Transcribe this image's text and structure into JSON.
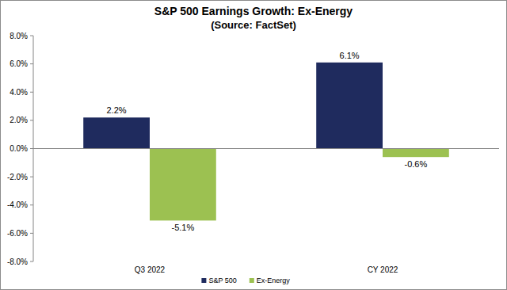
{
  "chart_data": {
    "type": "bar",
    "title": "S&P 500 Earnings Growth: Ex-Energy",
    "subtitle": "(Source: FactSet)",
    "categories": [
      "Q3 2022",
      "CY 2022"
    ],
    "series": [
      {
        "name": "S&P 500",
        "color": "#1f2b5e",
        "values": [
          2.2,
          6.1
        ],
        "value_labels": [
          "2.2%",
          "6.1%"
        ]
      },
      {
        "name": "Ex-Energy",
        "color": "#9cc151",
        "values": [
          -5.1,
          -0.6
        ],
        "value_labels": [
          "-5.1%",
          "-0.6%"
        ]
      }
    ],
    "ylim": [
      -8,
      8
    ],
    "yticks": [
      {
        "value": -8,
        "label": "-8.0%"
      },
      {
        "value": -6,
        "label": "-6.0%"
      },
      {
        "value": -4,
        "label": "-4.0%"
      },
      {
        "value": -2,
        "label": "-2.0%"
      },
      {
        "value": 0,
        "label": "0.0%"
      },
      {
        "value": 2,
        "label": "2.0%"
      },
      {
        "value": 4,
        "label": "4.0%"
      },
      {
        "value": 6,
        "label": "6.0%"
      },
      {
        "value": 8,
        "label": "8.0%"
      }
    ],
    "grid": false,
    "legend": "bottom",
    "data_labels": true
  }
}
